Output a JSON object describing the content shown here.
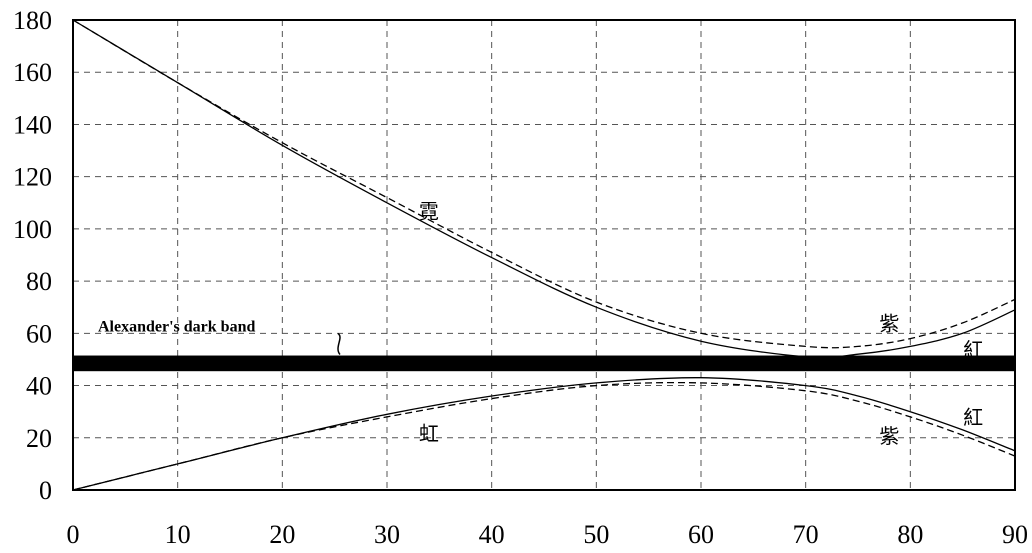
{
  "chart_data": {
    "type": "line",
    "title": "",
    "xlabel": "",
    "ylabel": "",
    "xlim": [
      0,
      90
    ],
    "ylim": [
      0,
      180
    ],
    "grid": true,
    "x_ticks": [
      "0",
      "10",
      "20",
      "30",
      "40",
      "50",
      "60",
      "70",
      "80",
      "90"
    ],
    "y_ticks": [
      "0",
      "20",
      "40",
      "60",
      "80",
      "100",
      "120",
      "140",
      "160",
      "180"
    ],
    "band": {
      "label": "Alexander's dark band",
      "y_range": [
        45.5,
        51.5
      ]
    },
    "series": [
      {
        "line": "solid",
        "color": "#000000",
        "x": [
          0,
          10,
          20,
          30,
          40,
          50,
          60,
          70,
          75,
          80,
          85,
          90
        ],
        "y": [
          180,
          156,
          132,
          110,
          89,
          70,
          57,
          51,
          52,
          55,
          60,
          69
        ]
      },
      {
        "line": "dashed",
        "color": "#000000",
        "x": [
          0,
          10,
          20,
          30,
          40,
          50,
          60,
          70,
          75,
          80,
          85,
          90
        ],
        "y": [
          180,
          156,
          133,
          112,
          91,
          72,
          60,
          55,
          55,
          58,
          64,
          73
        ]
      },
      {
        "line": "solid",
        "color": "#000000",
        "x": [
          0,
          10,
          20,
          30,
          40,
          50,
          60,
          70,
          75,
          80,
          85,
          90
        ],
        "y": [
          0,
          10,
          20,
          29,
          36,
          41,
          43,
          40,
          36,
          30,
          23,
          15
        ]
      },
      {
        "line": "dashed",
        "color": "#000000",
        "x": [
          0,
          10,
          20,
          30,
          40,
          50,
          60,
          70,
          75,
          80,
          85,
          90
        ],
        "y": [
          0,
          10,
          20,
          28,
          35,
          40,
          41,
          38,
          34,
          28,
          21,
          13
        ]
      }
    ],
    "annotations": [
      {
        "text": "霓",
        "x": 34,
        "y": 104
      },
      {
        "text": "紫",
        "x": 78,
        "y": 61
      },
      {
        "text": "紅",
        "x": 86,
        "y": 51
      },
      {
        "text": "虹",
        "x": 34,
        "y": 19
      },
      {
        "text": "紫",
        "x": 78,
        "y": 18
      },
      {
        "text": "紅",
        "x": 86,
        "y": 25
      }
    ]
  }
}
